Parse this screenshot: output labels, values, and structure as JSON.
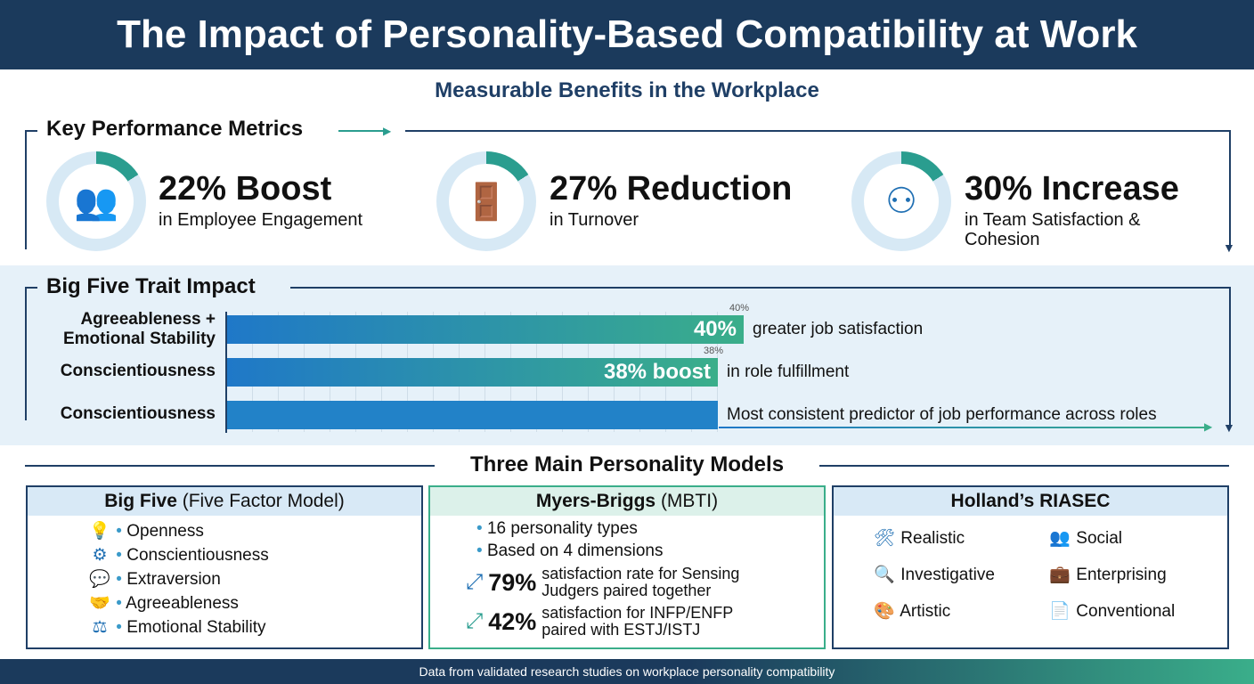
{
  "title": "The Impact of Personality-Based Compatibility at Work",
  "subtitle": "Measurable Benefits in the Workplace",
  "metrics": {
    "heading": "Key Performance Metrics",
    "items": [
      {
        "value": "22% Boost",
        "desc": "in Employee Engagement",
        "icon": "team-growth-icon"
      },
      {
        "value": "27% Reduction",
        "desc": "in Turnover",
        "icon": "exit-door-icon"
      },
      {
        "value": "30% Increase",
        "desc": "in Team Satisfaction & Cohesion",
        "icon": "team-network-icon"
      }
    ]
  },
  "colors": {
    "navy": "#1b3a5c",
    "blue": "#1f78c8",
    "green": "#3aae8a"
  },
  "bigfive": {
    "heading": "Big Five Trait Impact"
  },
  "chart_data": {
    "type": "bar",
    "orientation": "horizontal",
    "categories": [
      "Agreeableness + Emotional Stability",
      "Conscientiousness",
      "Conscientiousness"
    ],
    "values": [
      40,
      38,
      38
    ],
    "tick_labels": [
      "40%",
      "38%"
    ],
    "data_labels": [
      "40%",
      "38% boost",
      ""
    ],
    "annotations": [
      "greater job satisfaction",
      "in role fulfillment",
      "Most consistent predictor of job performance across roles"
    ],
    "xlim": [
      0,
      50
    ],
    "grid": true
  },
  "models": {
    "heading": "Three Main Personality Models",
    "bigfive": {
      "title_bold": "Big Five",
      "title_rest": "(Five Factor Model)",
      "items": [
        {
          "label": "Openness",
          "icon": "lightbulb-icon"
        },
        {
          "label": "Conscientiousness",
          "icon": "gear-icon"
        },
        {
          "label": "Extraversion",
          "icon": "chat-icon"
        },
        {
          "label": "Agreeableness",
          "icon": "handshake-icon"
        },
        {
          "label": "Emotional Stability",
          "icon": "scale-icon"
        }
      ]
    },
    "mbti": {
      "title_bold": "Myers-Briggs",
      "title_rest": "(MBTI)",
      "bullets": [
        "16 personality types",
        "Based on 4 dimensions"
      ],
      "stats": [
        {
          "value": "79%",
          "line1": "satisfaction rate for Sensing",
          "line2": "Judgers paired together"
        },
        {
          "value": "42%",
          "line1": "satisfaction for INFP/ENFP",
          "line2": "paired with ESTJ/ISTJ"
        }
      ]
    },
    "riasec": {
      "title": "Holland’s RIASEC",
      "items": [
        {
          "label": "Realistic",
          "icon": "tools-icon"
        },
        {
          "label": "Social",
          "icon": "people-icon"
        },
        {
          "label": "Investigative",
          "icon": "magnifier-icon"
        },
        {
          "label": "Enterprising",
          "icon": "briefcase-icon"
        },
        {
          "label": "Artistic",
          "icon": "palette-icon"
        },
        {
          "label": "Conventional",
          "icon": "document-check-icon"
        }
      ]
    }
  },
  "footer": "Data from validated research studies on workplace personality compatibility"
}
